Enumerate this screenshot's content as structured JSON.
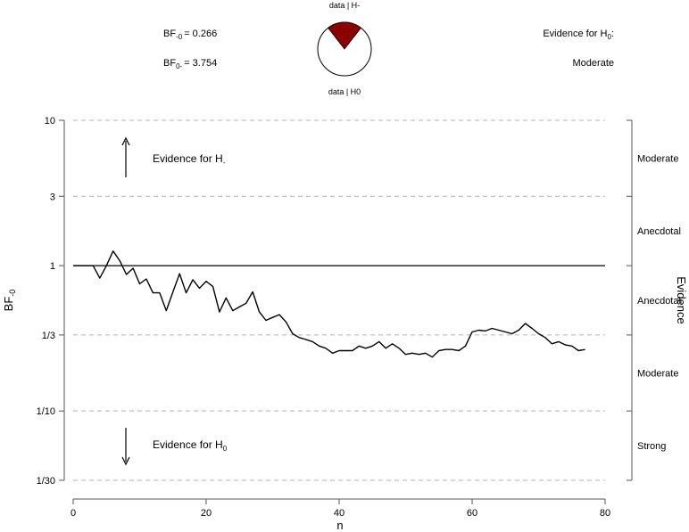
{
  "header": {
    "bf10_sym": "BF",
    "bf10_sub": "-0",
    "bf10_val": "= 0.266",
    "bf01_sym": "BF",
    "bf01_sub": "0-",
    "bf01_val": "= 3.754",
    "evidence_label": "Evidence for H",
    "evidence_label_sub": "0",
    "evidence_label_tail": ":",
    "evidence_strength": "Moderate",
    "pie_top_label": "data | H-",
    "pie_bottom_label": "data | H0",
    "pie_fraction_h_minus": 0.21,
    "pie_color": "#8b0000"
  },
  "annotations": {
    "up_text": "Evidence for H",
    "up_sub": "-",
    "down_text": "Evidence for H",
    "down_sub": "0"
  },
  "chart_data": {
    "type": "line",
    "title": "",
    "xlabel": "n",
    "ylabel": "BF",
    "ylabel_sub": "-0",
    "right_label": "Evidence",
    "y_scale": "log",
    "xlim": [
      0,
      80
    ],
    "ylim": [
      0.0333333,
      10
    ],
    "x_ticks": [
      0,
      20,
      40,
      60,
      80
    ],
    "y_ticks": [
      {
        "value": 10,
        "label": "10"
      },
      {
        "value": 3,
        "label": "3"
      },
      {
        "value": 1,
        "label": "1"
      },
      {
        "value": 0.3333333,
        "label": "1/3"
      },
      {
        "value": 0.1,
        "label": "1/10"
      },
      {
        "value": 0.0333333,
        "label": "1/30"
      }
    ],
    "dashed_levels": [
      10,
      3,
      0.3333333,
      0.1,
      0.0333333
    ],
    "reference_line": 1,
    "evidence_zones": [
      "Moderate",
      "Anecdotal",
      "Anecdotal",
      "Moderate",
      "Strong"
    ],
    "line_color": "#000000",
    "series": [
      {
        "x": [
          0,
          1,
          2,
          3,
          4,
          5,
          6,
          7,
          8,
          9,
          10,
          11,
          12,
          13,
          14,
          15,
          16,
          17,
          18,
          19,
          20,
          21,
          22,
          23,
          24,
          25,
          26,
          27,
          28,
          29,
          30,
          31,
          32,
          33,
          34,
          35,
          36,
          37,
          38,
          39,
          40,
          41,
          42,
          43,
          44,
          45,
          46,
          47,
          48,
          49,
          50,
          51,
          52,
          53,
          54,
          55,
          56,
          57,
          58,
          59,
          60,
          61,
          62,
          63,
          64,
          65,
          66,
          67,
          68,
          69,
          70,
          71,
          72,
          73,
          74,
          75,
          76,
          77
        ],
        "y": [
          1,
          1,
          1,
          1,
          0.82,
          1.0,
          1.26,
          1.08,
          0.87,
          0.96,
          0.75,
          0.81,
          0.65,
          0.65,
          0.49,
          0.66,
          0.88,
          0.65,
          0.8,
          0.7,
          0.78,
          0.72,
          0.48,
          0.6,
          0.49,
          0.52,
          0.55,
          0.66,
          0.48,
          0.42,
          0.44,
          0.46,
          0.41,
          0.34,
          0.32,
          0.31,
          0.3,
          0.28,
          0.27,
          0.25,
          0.26,
          0.26,
          0.26,
          0.28,
          0.27,
          0.28,
          0.3,
          0.27,
          0.29,
          0.27,
          0.245,
          0.25,
          0.245,
          0.25,
          0.235,
          0.26,
          0.265,
          0.265,
          0.26,
          0.28,
          0.35,
          0.36,
          0.355,
          0.37,
          0.36,
          0.35,
          0.34,
          0.36,
          0.4,
          0.37,
          0.34,
          0.32,
          0.29,
          0.3,
          0.285,
          0.28,
          0.26,
          0.265
        ]
      }
    ]
  }
}
